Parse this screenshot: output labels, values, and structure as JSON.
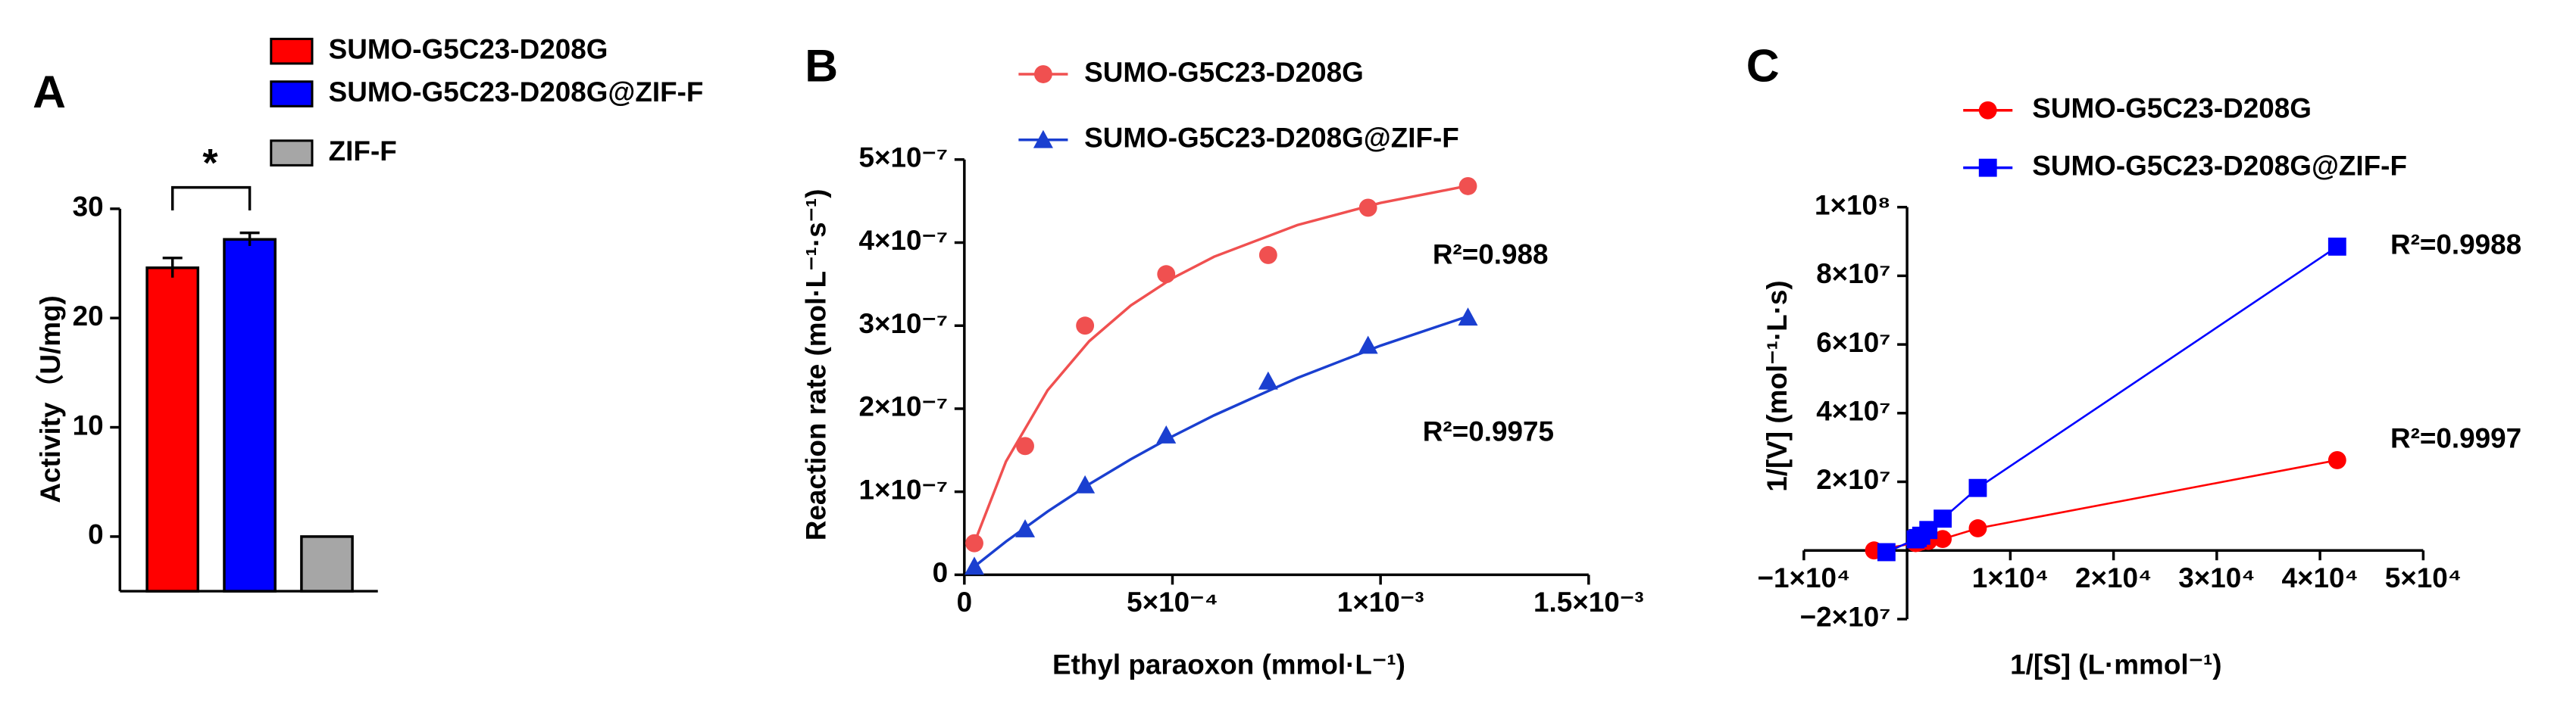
{
  "chart_data": [
    {
      "type": "bar",
      "panel": "A",
      "ylabel": "Activity（U/mg)",
      "ylim": [
        -5,
        30
      ],
      "yticks": [
        0,
        10,
        20,
        30
      ],
      "annotations": [
        "*"
      ],
      "series": [
        {
          "name": "SUMO-G5C23-D208G",
          "color": "#ff0000",
          "values": [
            24.6
          ],
          "errors": [
            0.9
          ]
        },
        {
          "name": "SUMO-G5C23-D208G@ZIF-F",
          "color": "#0000ff",
          "values": [
            27.2
          ],
          "errors": [
            0.6
          ]
        },
        {
          "name": "ZIF-F",
          "color": "#a6a6a6",
          "values": [
            0
          ],
          "errors": [
            0
          ]
        }
      ]
    },
    {
      "type": "scatter",
      "panel": "B",
      "xlabel": "Ethyl paraoxon (mmol·L⁻¹)",
      "ylabel": "Reaction rate (mol·L⁻¹·s⁻¹)",
      "xlim": [
        0,
        0.0015
      ],
      "ylim": [
        0,
        5e-07
      ],
      "xticks": [
        0,
        {
          "value": 0.0005,
          "label": "5×10⁻⁴"
        },
        {
          "value": 0.001,
          "label": "1×10⁻³"
        },
        {
          "value": 0.0015,
          "label": "1.5×10⁻³"
        }
      ],
      "yticks": [
        0,
        {
          "value": 1e-07,
          "label": "1×10⁻⁷"
        },
        {
          "value": 2e-07,
          "label": "2×10⁻⁷"
        },
        {
          "value": 3e-07,
          "label": "3×10⁻⁷"
        },
        {
          "value": 4e-07,
          "label": "4×10⁻⁷"
        },
        {
          "value": 5e-07,
          "label": "5×10⁻⁷"
        }
      ],
      "annotations": [
        "R²=0.988",
        "R²=0.9975"
      ],
      "series": [
        {
          "name": "SUMO-G5C23-D208G",
          "color": "#f05050",
          "marker": "circle",
          "x": [
            2.4e-05,
            0.000146,
            0.00029,
            0.000485,
            0.00073,
            0.00097,
            0.00121
          ],
          "values": [
            3.8e-08,
            1.55e-07,
            3e-07,
            3.62e-07,
            3.85e-07,
            4.42e-07,
            4.68e-07
          ],
          "fit": {
            "x": [
              2e-05,
              0.0001,
              0.0002,
              0.0003,
              0.0004,
              0.0005,
              0.0006,
              0.0008,
              0.001,
              0.00121
            ],
            "values": [
              3.33e-08,
              1.364e-07,
              2.222e-07,
              2.813e-07,
              3.243e-07,
              3.571e-07,
              3.83e-07,
              4.211e-07,
              4.478e-07,
              4.684e-07
            ]
          }
        },
        {
          "name": "SUMO-G5C23-D208G@ZIF-F",
          "color": "#1a3fd0",
          "marker": "triangle",
          "x": [
            2.4e-05,
            0.000146,
            0.00029,
            0.000485,
            0.00073,
            0.00097,
            0.00121
          ],
          "values": [
            1e-08,
            5.5e-08,
            1.08e-07,
            1.68e-07,
            2.33e-07,
            2.76e-07,
            3.1e-07
          ],
          "fit": {
            "x": [
              2e-05,
              0.0001,
              0.0002,
              0.0003,
              0.0004,
              0.0005,
              0.0006,
              0.0008,
              0.001,
              0.00121
            ],
            "values": [
              8.3e-09,
              4e-08,
              7.62e-08,
              1.091e-07,
              1.391e-07,
              1.667e-07,
              1.92e-07,
              2.37e-07,
              2.759e-07,
              3.113e-07
            ]
          }
        }
      ]
    },
    {
      "type": "scatter",
      "panel": "C",
      "xlabel": "1/[S] (L·mmol⁻¹)",
      "ylabel": "1/[V] (mol⁻¹·L·s)",
      "xlim": [
        -10000,
        50000
      ],
      "ylim": [
        -20000000,
        100000000
      ],
      "xticks": [
        {
          "value": -10000,
          "label": "−1×10⁴"
        },
        {
          "value": 10000,
          "label": "1×10⁴"
        },
        {
          "value": 20000,
          "label": "2×10⁴"
        },
        {
          "value": 30000,
          "label": "3×10⁴"
        },
        {
          "value": 40000,
          "label": "4×10⁴"
        },
        {
          "value": 50000,
          "label": "5×10⁴"
        }
      ],
      "yticks": [
        {
          "value": -20000000,
          "label": "−2×10⁷"
        },
        {
          "value": 20000000,
          "label": "2×10⁷"
        },
        {
          "value": 40000000,
          "label": "4×10⁷"
        },
        {
          "value": 60000000,
          "label": "6×10⁷"
        },
        {
          "value": 80000000,
          "label": "8×10⁷"
        },
        {
          "value": 100000000,
          "label": "1×10⁸"
        }
      ],
      "annotations": [
        "R²=0.9988",
        "R²=0.9997"
      ],
      "series": [
        {
          "name": "SUMO-G5C23-D208G",
          "color": "#ff0000",
          "marker": "circle",
          "line": true,
          "x": [
            -3200,
            826,
            1031,
            1370,
            2062,
            3448,
            6850,
            41667
          ],
          "values": [
            0,
            2140000,
            2260000,
            2600000,
            2760000,
            3330000,
            6450000,
            26300000
          ]
        },
        {
          "name": "SUMO-G5C23-D208G@ZIF-F",
          "color": "#0000ff",
          "marker": "square",
          "line": true,
          "x": [
            -2000,
            826,
            1031,
            1370,
            2062,
            3448,
            6850,
            41667
          ],
          "values": [
            -500000,
            3230000,
            3620000,
            4290000,
            5950000,
            9260000,
            18200000,
            88500000
          ]
        }
      ]
    }
  ]
}
